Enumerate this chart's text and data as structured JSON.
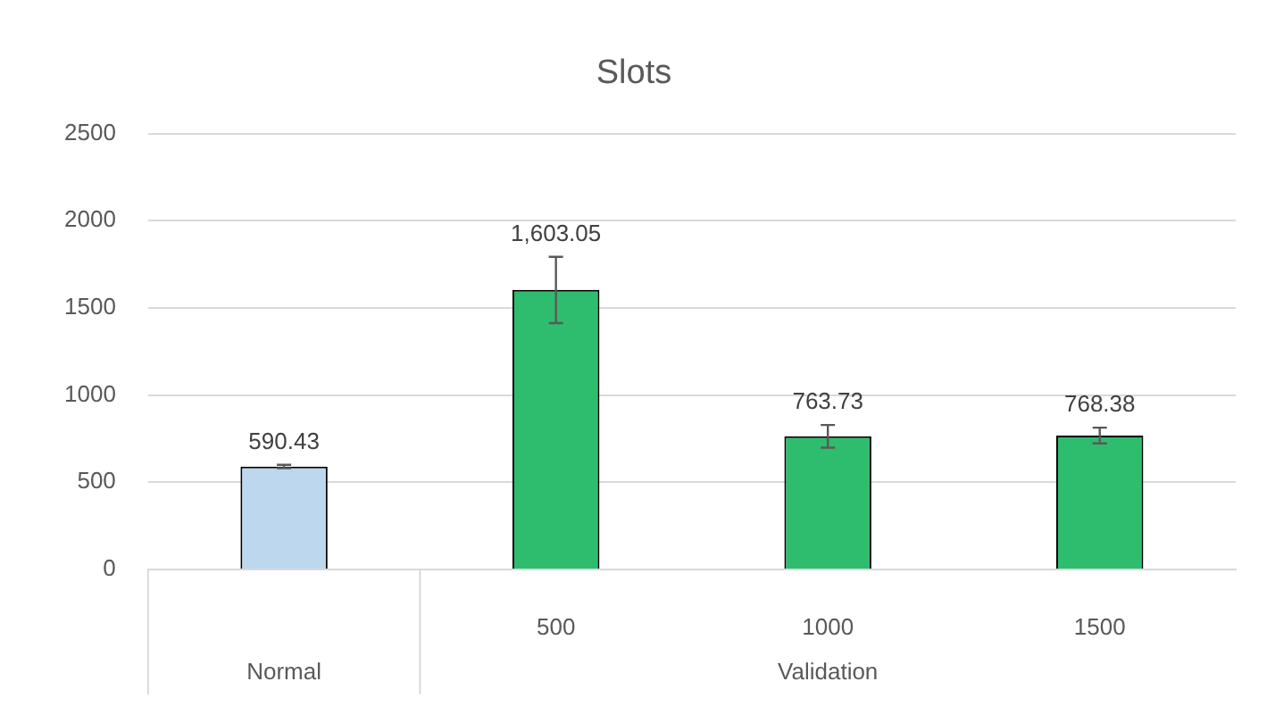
{
  "chart_data": {
    "type": "bar",
    "title": "Slots",
    "categories": [
      null,
      "500",
      "1000",
      "1500"
    ],
    "values": [
      590.43,
      1603.05,
      763.73,
      768.38
    ],
    "errors": [
      10,
      190,
      65,
      45
    ],
    "colors": [
      "#bdd7ee",
      "#2ebd6e",
      "#2ebd6e",
      "#2ebd6e"
    ],
    "value_labels": [
      "590.43",
      "1,603.05",
      "763.73",
      "768.38"
    ],
    "annotations": [
      "Normal",
      "Validation"
    ],
    "ylim": [
      0,
      2500
    ],
    "yticks": [
      0,
      500,
      1000,
      1500,
      2000,
      2500
    ],
    "grid": "y",
    "legend": false
  }
}
